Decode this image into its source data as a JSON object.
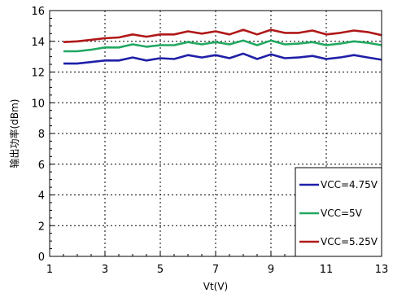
{
  "chart_data": {
    "type": "line",
    "xlabel": "Vt(V)",
    "ylabel": "输出功率(dBm)",
    "xlim": [
      1,
      13
    ],
    "ylim": [
      0,
      16
    ],
    "xticks": [
      1,
      3,
      5,
      7,
      9,
      11,
      13
    ],
    "yticks": [
      0,
      2,
      4,
      6,
      8,
      10,
      12,
      14,
      16
    ],
    "grid": true,
    "legend_position": "bottom-right",
    "x": [
      1.5,
      2,
      2.5,
      3,
      3.5,
      4,
      4.5,
      5,
      5.5,
      6,
      6.5,
      7,
      7.5,
      8,
      8.5,
      9,
      9.5,
      10,
      10.5,
      11,
      11.5,
      12,
      12.5,
      13
    ],
    "series": [
      {
        "name": "VCC=4.75V",
        "color": "#1f1fa8",
        "values": [
          12.55,
          12.55,
          12.65,
          12.75,
          12.75,
          12.95,
          12.75,
          12.9,
          12.85,
          13.1,
          12.95,
          13.1,
          12.9,
          13.2,
          12.85,
          13.15,
          12.9,
          12.95,
          13.05,
          12.85,
          12.95,
          13.1,
          12.95,
          12.8
        ]
      },
      {
        "name": "VCC=5V",
        "color": "#22a860",
        "values": [
          13.35,
          13.35,
          13.45,
          13.6,
          13.6,
          13.8,
          13.65,
          13.75,
          13.75,
          13.95,
          13.8,
          13.95,
          13.8,
          14.05,
          13.75,
          14.05,
          13.8,
          13.85,
          13.95,
          13.75,
          13.85,
          14.0,
          13.9,
          13.75
        ]
      },
      {
        "name": "VCC=5.25V",
        "color": "#b01818",
        "values": [
          13.95,
          14.0,
          14.1,
          14.2,
          14.25,
          14.45,
          14.3,
          14.45,
          14.45,
          14.65,
          14.5,
          14.65,
          14.45,
          14.75,
          14.45,
          14.75,
          14.55,
          14.55,
          14.7,
          14.45,
          14.55,
          14.7,
          14.6,
          14.4
        ]
      }
    ]
  }
}
